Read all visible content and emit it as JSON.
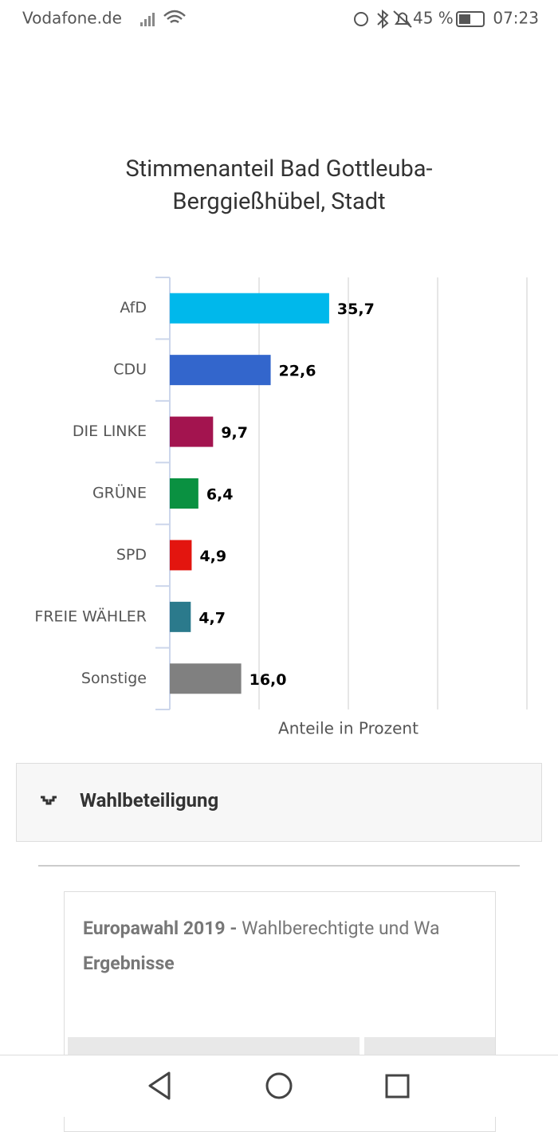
{
  "status_bar": {
    "carrier": "Vodafone.de",
    "battery": "45 %",
    "time": "07:23"
  },
  "chart_data": {
    "type": "bar",
    "orientation": "horizontal",
    "title": "Stimmenanteil Bad Gottleuba-Berggießhübel, Stadt",
    "x_label": "Anteile in Prozent",
    "categories": [
      "AfD",
      "CDU",
      "DIE LINKE",
      "GRÜNE",
      "SPD",
      "FREIE WÄHLER",
      "Sonstige"
    ],
    "values": [
      35.7,
      22.6,
      9.7,
      6.4,
      4.9,
      4.7,
      16.0
    ],
    "value_labels": [
      "35,7",
      "22,6",
      "9,7",
      "6,4",
      "4,9",
      "4,7",
      "16,0"
    ],
    "colors": [
      "#00b8eb",
      "#3366cc",
      "#a3144f",
      "#0a9141",
      "#e3150f",
      "#2b7a8c",
      "#808080"
    ],
    "xlim": [
      0,
      80
    ],
    "xticks": [
      0,
      20,
      40,
      60,
      80
    ],
    "grid": true
  },
  "section": {
    "title": "Wahlbeteiligung"
  },
  "card": {
    "title_bold": "Europawahl 2019 -",
    "title_rest": "Wahlberechtigte und Wa",
    "subtitle": "Ergebnisse"
  }
}
